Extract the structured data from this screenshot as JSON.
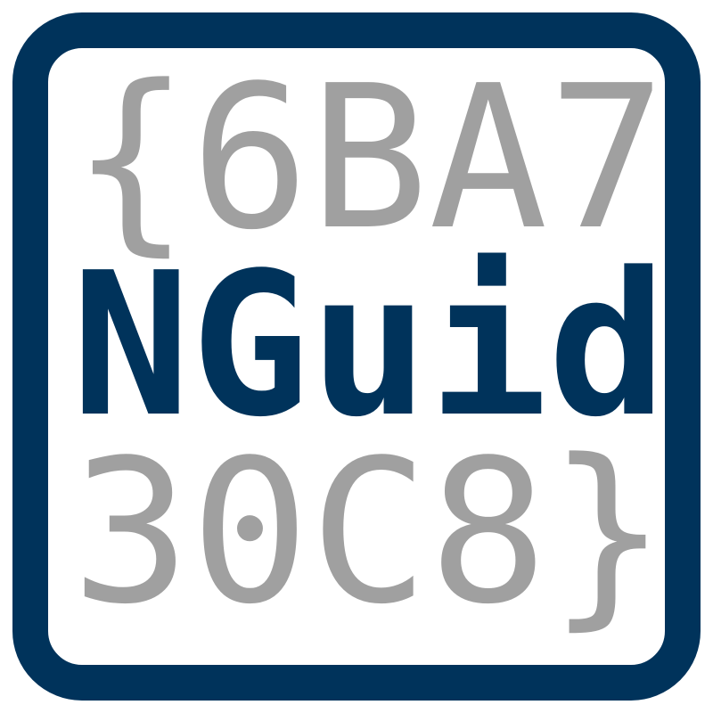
{
  "logo": {
    "frame_color": "#00335b",
    "accent_color": "#00335b",
    "muted_color": "#a0a0a0",
    "rows": [
      [
        "{",
        "6",
        "B",
        "A",
        "7"
      ],
      [
        "N",
        "G",
        "u",
        "i",
        "d"
      ],
      [
        "3",
        "0",
        "C",
        "8",
        "}"
      ]
    ]
  }
}
